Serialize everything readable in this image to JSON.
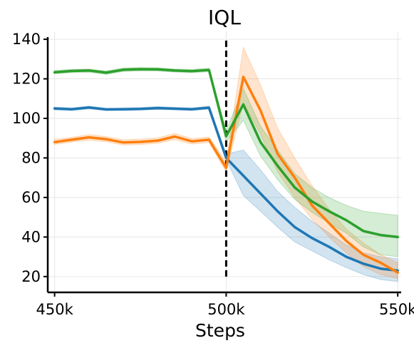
{
  "chart_data": {
    "type": "line",
    "title": "IQL",
    "xlabel": "Steps",
    "ylabel": "",
    "xlim": [
      448000,
      551000
    ],
    "ylim": [
      12,
      144
    ],
    "xticks": [
      450000,
      500000,
      550000
    ],
    "xtick_labels": [
      "450k",
      "500k",
      "550k"
    ],
    "yticks": [
      20,
      40,
      60,
      80,
      100,
      120,
      140
    ],
    "ytick_labels": [
      "20",
      "40",
      "60",
      "80",
      "100",
      "120",
      "140"
    ],
    "grid": true,
    "legend": "none",
    "vline": {
      "x": 500000,
      "style": "dashed",
      "color": "#000000"
    },
    "x": [
      450000,
      455000,
      460000,
      465000,
      470000,
      475000,
      480000,
      485000,
      490000,
      495000,
      500000,
      505000,
      510000,
      515000,
      520000,
      525000,
      530000,
      535000,
      540000,
      545000,
      550000
    ],
    "series": [
      {
        "color": "#1f77b4",
        "values": [
          105,
          104.6,
          105.5,
          104.5,
          104.6,
          104.8,
          105.2,
          104.9,
          104.6,
          105.4,
          80,
          71,
          62,
          53,
          45,
          39.5,
          35,
          30,
          26.5,
          24,
          23
        ],
        "lower": [
          104.3,
          104,
          104.8,
          104,
          104,
          104.2,
          104.5,
          104.3,
          104,
          104.7,
          79,
          61,
          53,
          45,
          37.5,
          33,
          28.5,
          24.5,
          21,
          18.5,
          17.5
        ],
        "upper": [
          105.7,
          105.3,
          106.2,
          105.2,
          105.3,
          105.5,
          106,
          105.6,
          105.3,
          106.2,
          82,
          84,
          74,
          63,
          55,
          48,
          42,
          36,
          32,
          30,
          29
        ]
      },
      {
        "color": "#ff7f0e",
        "values": [
          88,
          89.2,
          90.4,
          89.5,
          87.8,
          88.1,
          88.7,
          90.8,
          88.4,
          89.2,
          75,
          121,
          104,
          82,
          70,
          56,
          47,
          38,
          31,
          27,
          22
        ],
        "lower": [
          86.8,
          88,
          89,
          88.2,
          86.5,
          86.8,
          87.4,
          89.2,
          87,
          87.8,
          73,
          108,
          92,
          73,
          60,
          49,
          40,
          32,
          25,
          21,
          19
        ],
        "upper": [
          89.4,
          90.4,
          91.8,
          90.8,
          89.2,
          89.5,
          90.1,
          92.4,
          89.8,
          90.6,
          78,
          136,
          117,
          95,
          80,
          66,
          54,
          44,
          37,
          31,
          27
        ]
      },
      {
        "color": "#2ca02c",
        "values": [
          123.3,
          124,
          124.2,
          123.1,
          124.6,
          124.9,
          124.8,
          124.2,
          123.9,
          124.5,
          91,
          107,
          88,
          76,
          65,
          58,
          53,
          48.5,
          43,
          41,
          40
        ],
        "lower": [
          122.5,
          123.2,
          123.3,
          122.2,
          123.7,
          124,
          124,
          123.4,
          123.1,
          123.6,
          88,
          99,
          81,
          69,
          59,
          52.5,
          47,
          42,
          35,
          31,
          30
        ],
        "upper": [
          124.2,
          124.8,
          125,
          124,
          125.5,
          125.7,
          125.6,
          125,
          124.8,
          125.4,
          94,
          115,
          96,
          84,
          72,
          65,
          60,
          56,
          53,
          52,
          51
        ]
      }
    ]
  }
}
